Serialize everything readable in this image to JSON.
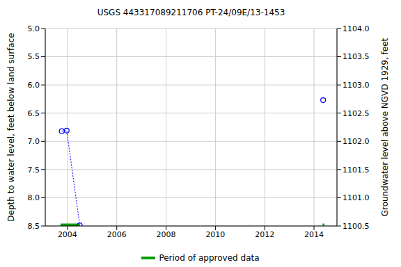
{
  "chart_data": {
    "type": "line",
    "title": "USGS 443317089211706 PT-24/09E/13-1453",
    "y_label": "Depth to water level, feet below land surface",
    "y2_label": "Groundwater level above NGVD 1929, feet",
    "xlim": [
      2003.1,
      2014.93
    ],
    "xticks": [
      2004,
      2006,
      2008,
      2010,
      2012,
      2014
    ],
    "ylim": [
      8.5,
      5.0
    ],
    "yticks": [
      {
        "value": 5,
        "label": "5.0"
      },
      5.5,
      {
        "value": 6,
        "label": "6.0"
      },
      6.5,
      {
        "value": 7,
        "label": "7.0"
      },
      7.5,
      {
        "value": 8,
        "label": "8.0"
      },
      8.5
    ],
    "y2lim": [
      1100.5,
      1104.0
    ],
    "y2ticks": [
      1100.5,
      {
        "value": 1101,
        "label": "1101.0"
      },
      1101.5,
      {
        "value": 1102,
        "label": "1102.0"
      },
      1102.5,
      {
        "value": 1103,
        "label": "1103.0"
      },
      1103.5,
      {
        "value": 1104,
        "label": "1104.0"
      }
    ],
    "grid": true,
    "legend": "bottom",
    "series": [
      {
        "color": "#0000ff",
        "marker": "circle",
        "line_style": "dotted",
        "x": [
          2003.77,
          2003.97,
          2004.5,
          2009.0,
          2014.37
        ],
        "values": [
          6.82,
          6.81,
          8.49,
          null,
          6.27
        ]
      },
      {
        "name": "Period of approved data",
        "type": "period",
        "color": "#00a000",
        "periods": [
          [
            2003.72,
            2004.5
          ],
          [
            2014.35,
            2014.42
          ]
        ]
      }
    ]
  }
}
